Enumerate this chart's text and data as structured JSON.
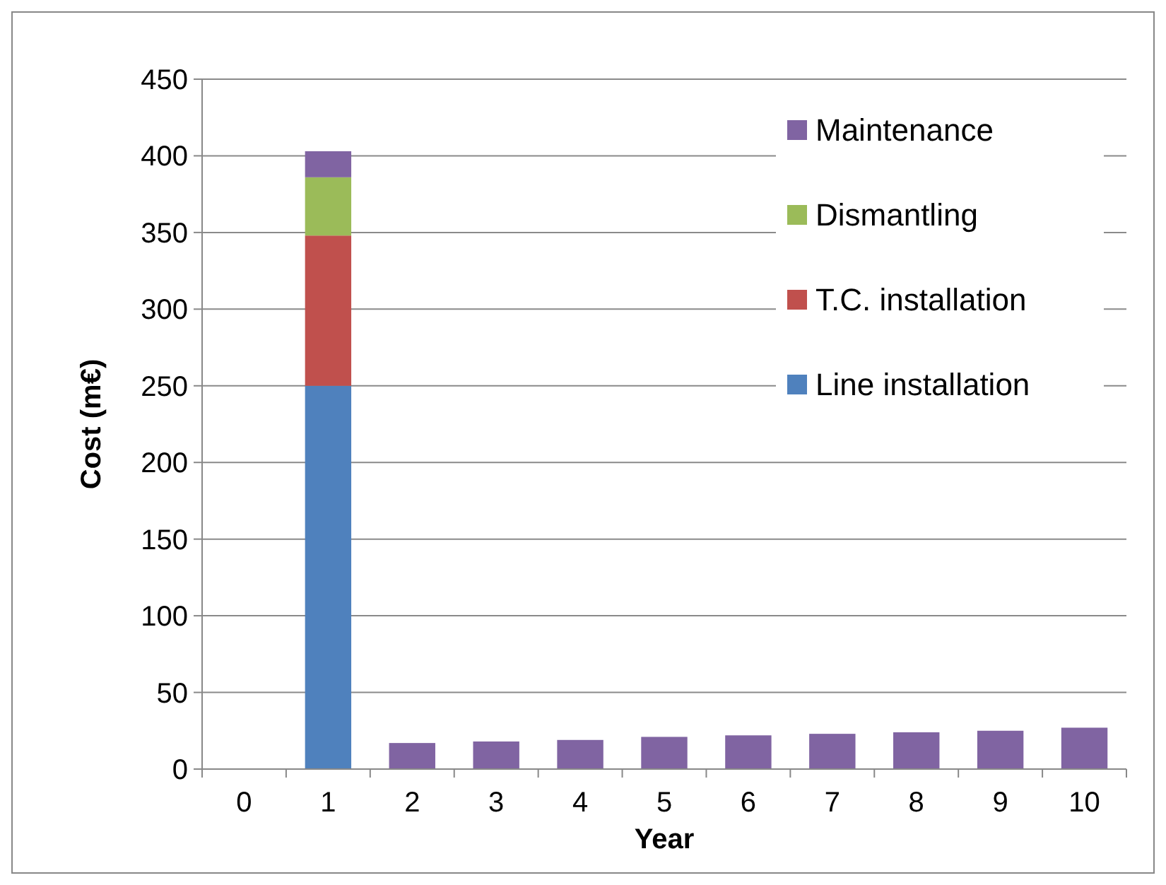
{
  "chart_data": {
    "type": "bar",
    "stacked": true,
    "xlabel": "Year",
    "ylabel": "Cost (m€)",
    "categories": [
      "0",
      "1",
      "2",
      "3",
      "4",
      "5",
      "6",
      "7",
      "8",
      "9",
      "10"
    ],
    "series": [
      {
        "name": "Line installation",
        "color": "#4f81bd",
        "values": [
          null,
          250,
          null,
          null,
          null,
          null,
          null,
          null,
          null,
          null,
          null
        ]
      },
      {
        "name": "T.C. installation",
        "color": "#c0504d",
        "values": [
          null,
          98,
          null,
          null,
          null,
          null,
          null,
          null,
          null,
          null,
          null
        ]
      },
      {
        "name": "Dismantling",
        "color": "#9bbb59",
        "values": [
          null,
          38,
          null,
          null,
          null,
          null,
          null,
          null,
          null,
          null,
          null
        ]
      },
      {
        "name": "Maintenance",
        "color": "#8064a2",
        "values": [
          null,
          17,
          17,
          18,
          19,
          21,
          22,
          23,
          24,
          25,
          27
        ]
      }
    ],
    "ylim": [
      0,
      450
    ],
    "yticks": [
      0,
      50,
      100,
      150,
      200,
      250,
      300,
      350,
      400,
      450
    ],
    "grid": "y",
    "legend": "top right"
  }
}
